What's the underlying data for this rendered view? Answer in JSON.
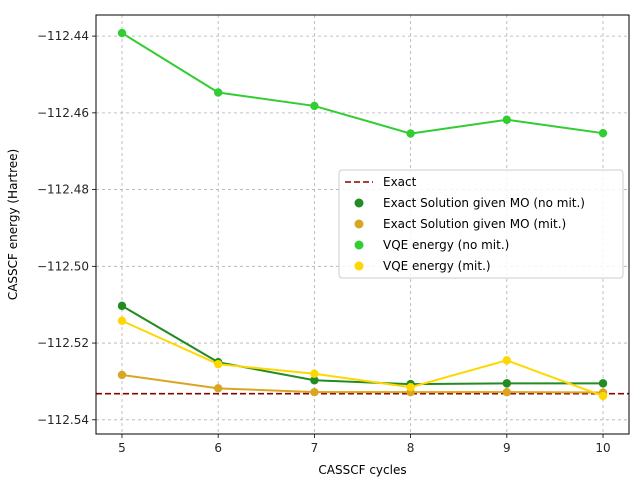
{
  "chart_data": {
    "type": "line",
    "title": "",
    "xlabel": "CASSCF cycles",
    "ylabel": "CASSCF energy (Hartree)",
    "xlim": [
      4.73,
      10.27
    ],
    "ylim": [
      -112.5437,
      -112.4345
    ],
    "x": [
      5,
      6,
      7,
      8,
      9,
      10
    ],
    "x_tick_labels": [
      "5",
      "6",
      "7",
      "8",
      "9",
      "10"
    ],
    "y_ticks": [
      -112.44,
      -112.46,
      -112.48,
      -112.5,
      -112.52,
      -112.54
    ],
    "y_tick_labels": [
      "−112.44",
      "−112.46",
      "−112.48",
      "−112.50",
      "−112.52",
      "−112.54"
    ],
    "grid": true,
    "legend_position": "center-right",
    "reference_line": {
      "name": "Exact",
      "value": -112.5332,
      "color": "#8b0000",
      "style": "dashed"
    },
    "series": [
      {
        "name": "Exact Solution given MO (no mit.)",
        "color": "#228b22",
        "values": [
          -112.5103,
          -112.525,
          -112.5297,
          -112.5307,
          -112.5305,
          -112.5305
        ]
      },
      {
        "name": "Exact Solution given MO (mit.)",
        "color": "#daa520",
        "values": [
          -112.5283,
          -112.5318,
          -112.5328,
          -112.5328,
          -112.5328,
          -112.5329
        ]
      },
      {
        "name": "VQE energy (no mit.)",
        "color": "#32cd32",
        "values": [
          -112.4392,
          -112.4547,
          -112.4582,
          -112.4654,
          -112.4618,
          -112.4653
        ]
      },
      {
        "name": "VQE energy (mit.)",
        "color": "#ffd700",
        "values": [
          -112.5142,
          -112.5255,
          -112.528,
          -112.5315,
          -112.5245,
          -112.5338
        ]
      }
    ]
  }
}
